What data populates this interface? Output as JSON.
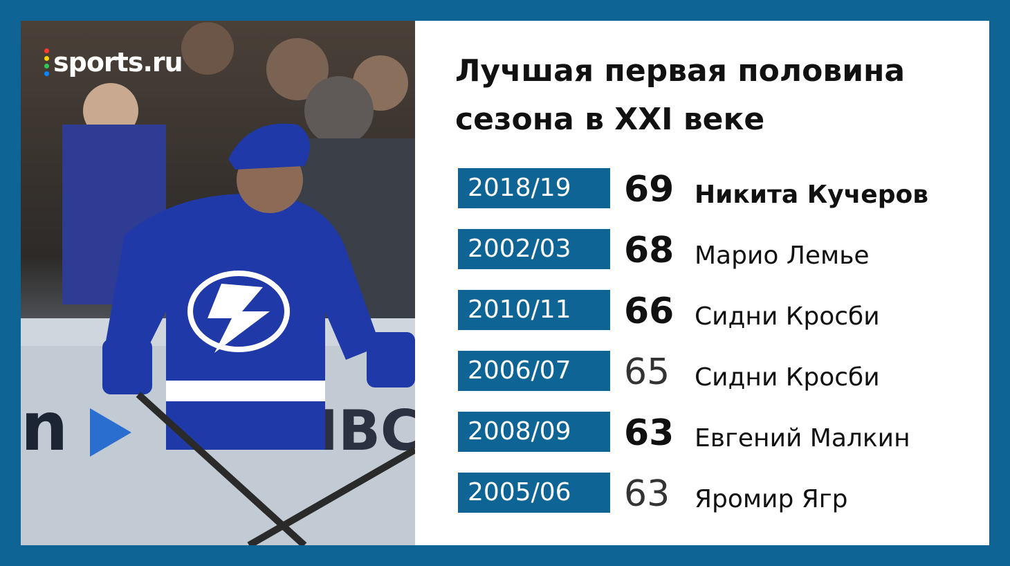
{
  "brand": {
    "logo_text": "sports.ru",
    "dot_colors": [
      "#ff3b30",
      "#ffd400",
      "#34c759",
      "#0a84ff"
    ]
  },
  "title": {
    "line1": "Лучшая первая половина",
    "line2": "сезона в XXI веке"
  },
  "colors": {
    "accent": "#0e6494",
    "frame": "#0e6494",
    "text": "#111111"
  },
  "rows": [
    {
      "season": "2018/19",
      "points": "69",
      "player": "Никита Кучеров",
      "points_bold": true,
      "player_bold": true
    },
    {
      "season": "2002/03",
      "points": "68",
      "player": "Марио Лемье",
      "points_bold": true,
      "player_bold": false
    },
    {
      "season": "2010/11",
      "points": "66",
      "player": "Сидни Кросби",
      "points_bold": true,
      "player_bold": false
    },
    {
      "season": "2006/07",
      "points": "65",
      "player": "Сидни Кросби",
      "points_bold": false,
      "player_bold": false
    },
    {
      "season": "2008/09",
      "points": "63",
      "player": "Евгений Малкин",
      "points_bold": true,
      "player_bold": false
    },
    {
      "season": "2005/06",
      "points": "63",
      "player": "Яромир Ягр",
      "points_bold": false,
      "player_bold": false
    }
  ]
}
